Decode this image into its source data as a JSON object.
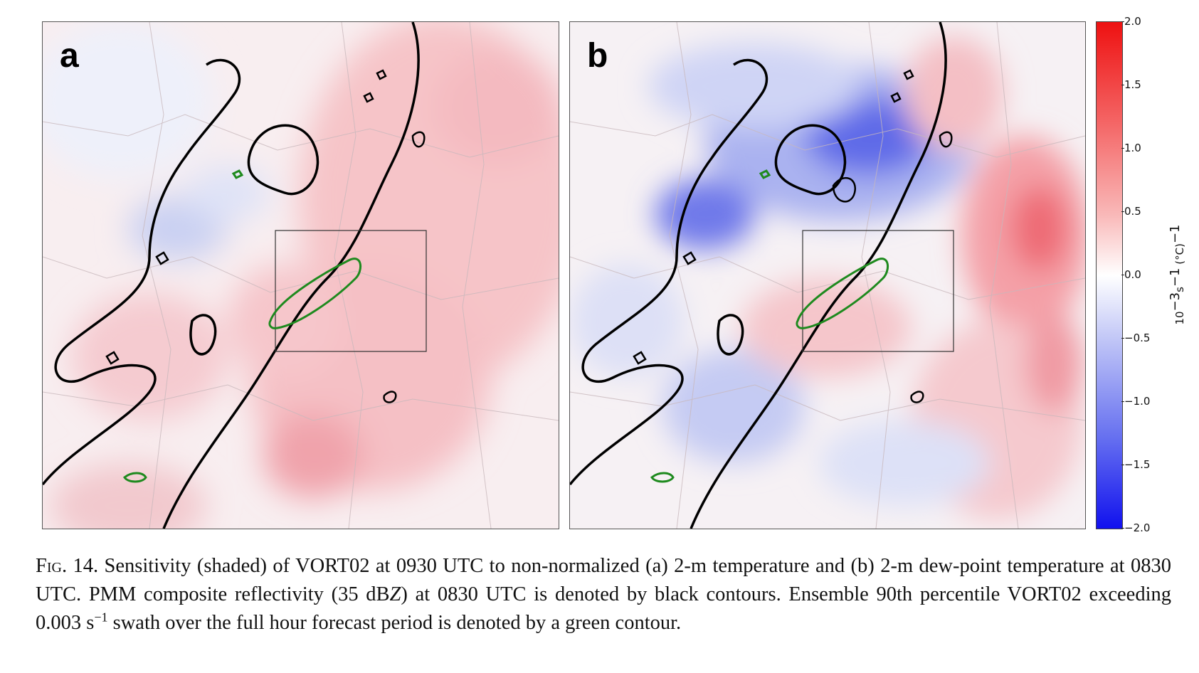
{
  "panels": [
    {
      "id": "a",
      "letter": "a"
    },
    {
      "id": "b",
      "letter": "b"
    }
  ],
  "colorbar": {
    "ticks": [
      "2.0",
      "1.5",
      "1.0",
      "0.5",
      "0.0",
      "−0.5",
      "−1.0",
      "−1.5",
      "−2.0"
    ],
    "label_prefix": "10",
    "label_exp1": "−3",
    "label_mid": "s",
    "label_exp2": "−1",
    "label_mid2": " (°C)",
    "label_exp3": "−1",
    "colors": {
      "max": "#ee1111",
      "zero": "#ffffff",
      "min": "#1111ee"
    }
  },
  "caption": {
    "fig": "Fig. 14.",
    "part1": " Sensitivity (shaded) of VORT02 at 0930 UTC to non-normalized (a) 2-m temperature and (b) 2-m dew-point temperature at 0830 UTC. PMM composite reflectivity (35 dB",
    "z": "Z",
    "part2": ") at 0830 UTC is denoted by black contours. Ensemble 90th percentile VORT02 exceeding 0.003 s",
    "sup": "−1",
    "part3": " swath over the full hour forecast period is denoted by a green contour."
  },
  "colors": {
    "reflectivity_contour": "#000000",
    "vort_contour": "#1e8a1e",
    "box": "#333333"
  }
}
